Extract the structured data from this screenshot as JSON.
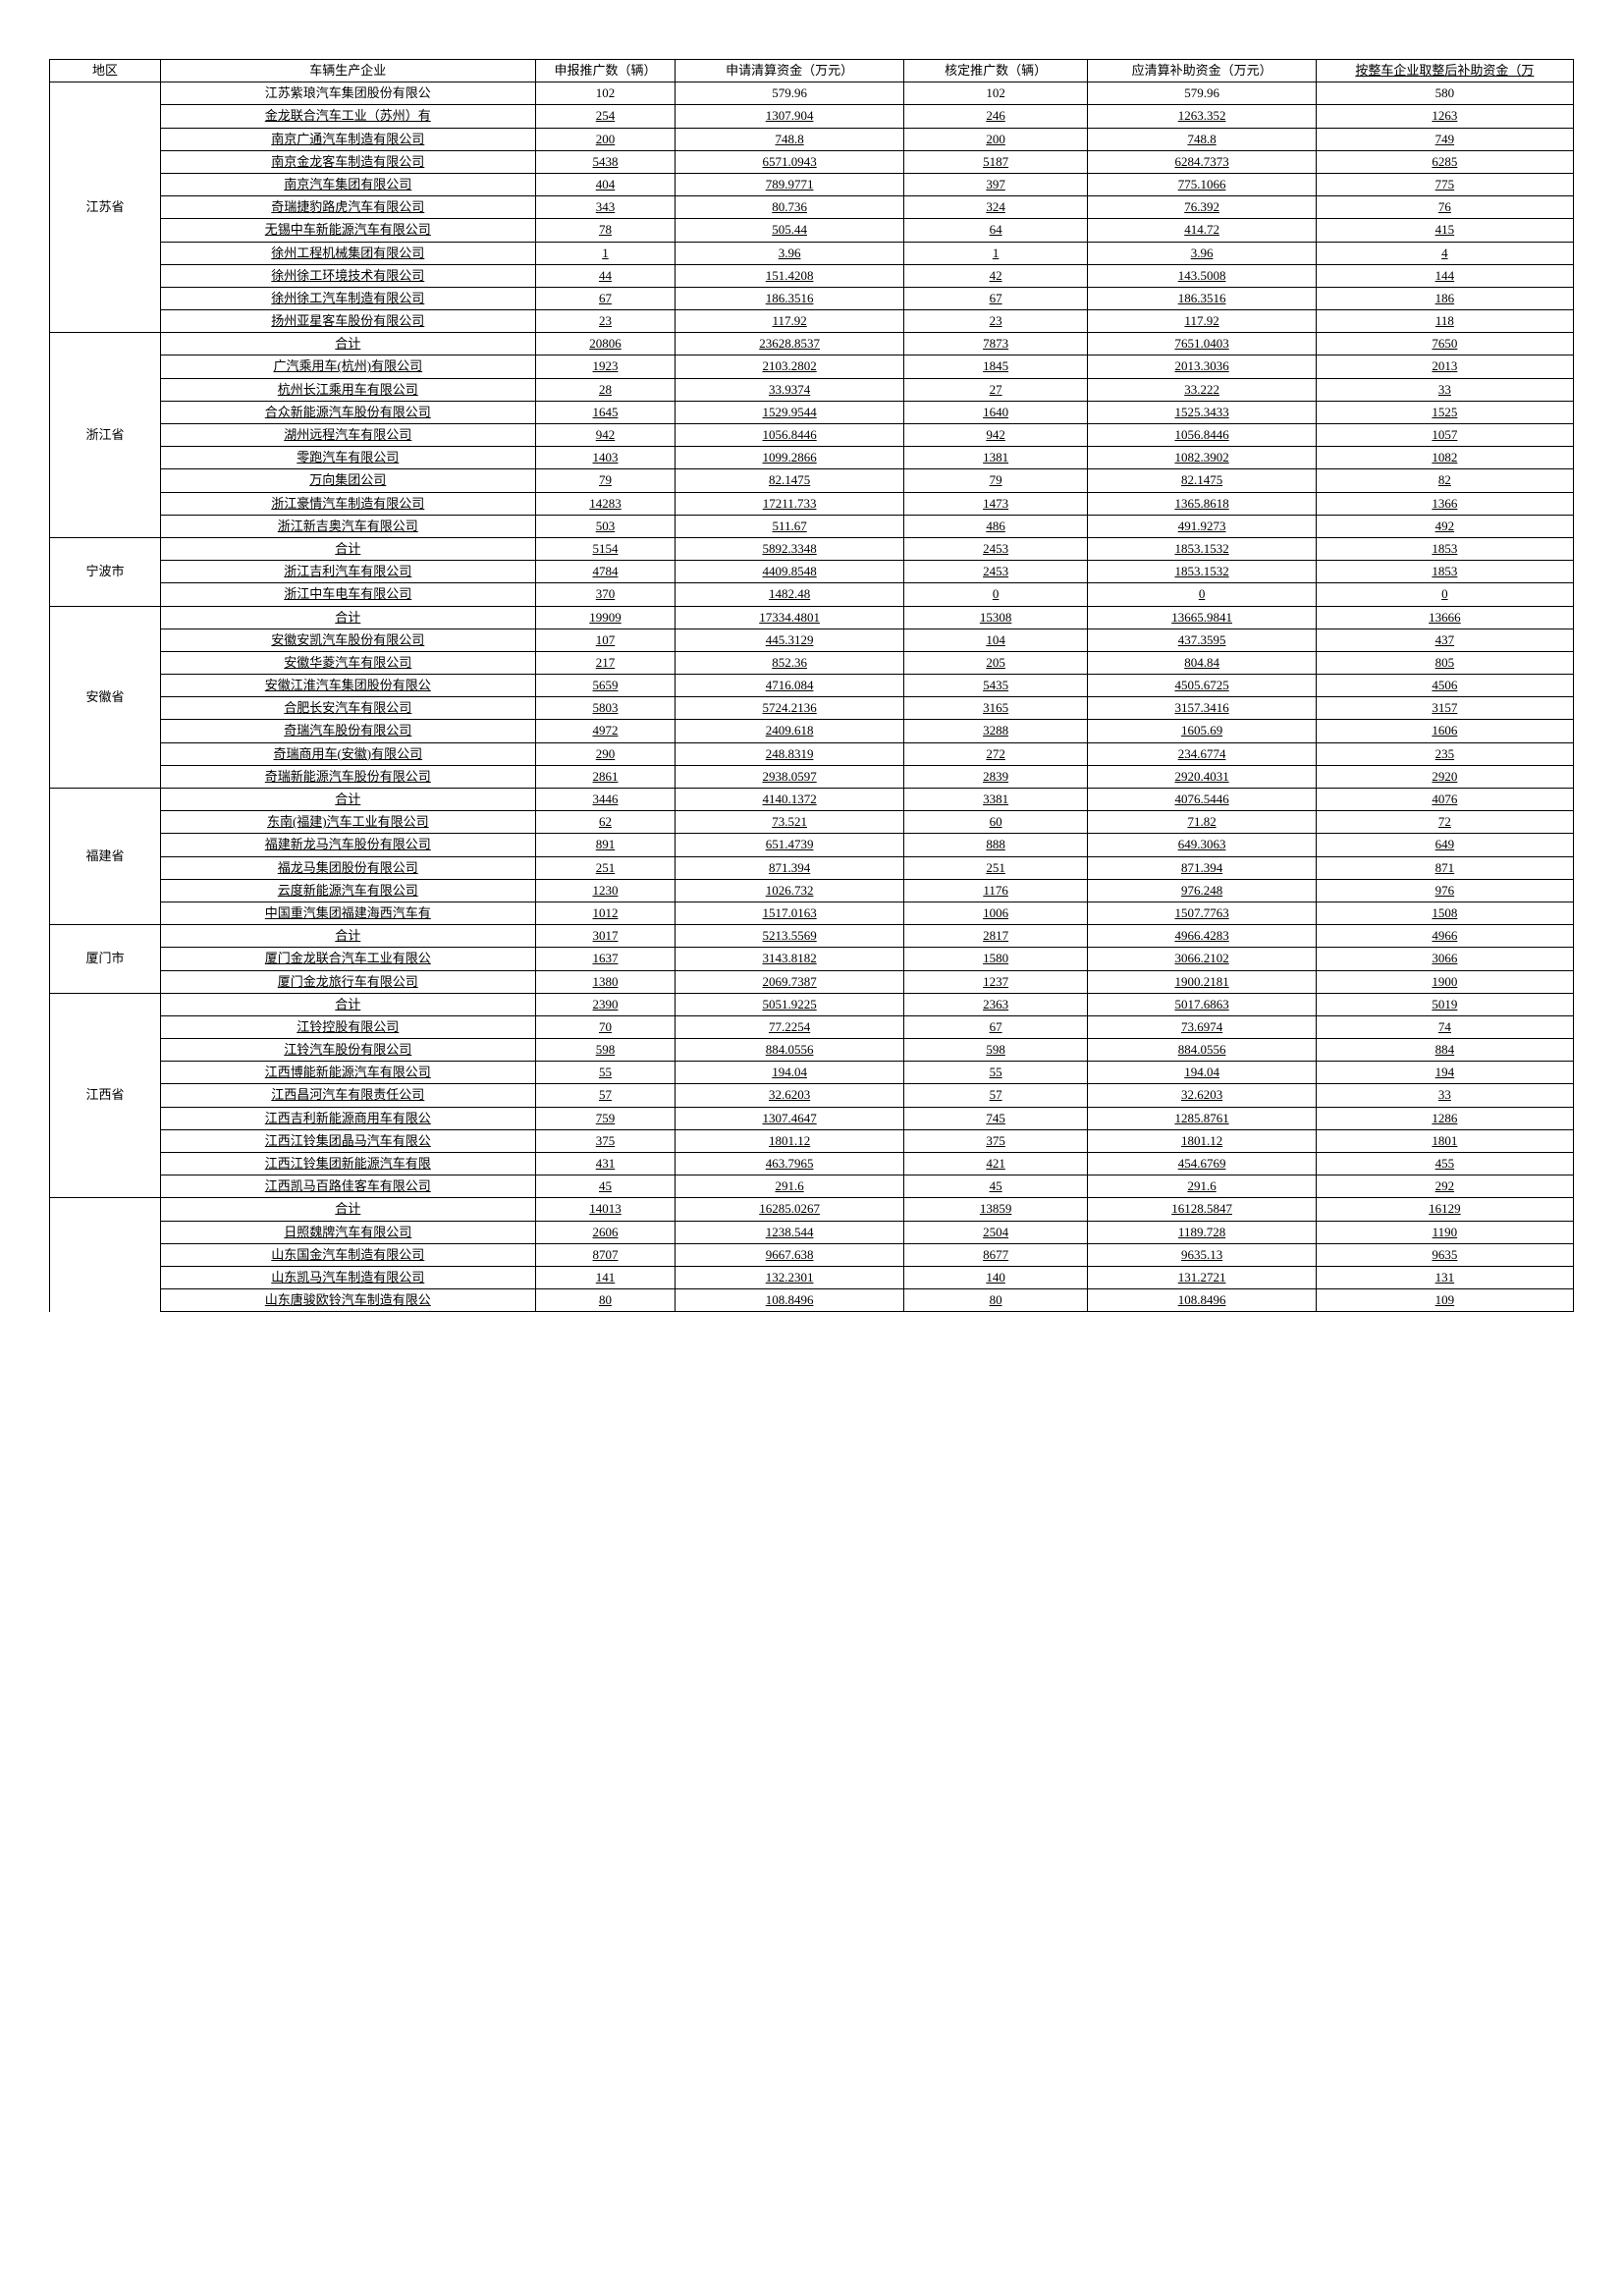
{
  "headers": {
    "region": "地区",
    "company": "车辆生产企业",
    "declared": "申报推广数（辆）",
    "applied": "申请清算资金（万元）",
    "approved": "核定推广数（辆）",
    "subsidy": "应清算补助资金（万元）",
    "rounded": "按整车企业取整后补助资金（万"
  },
  "regions": [
    {
      "name": "江苏省",
      "rows": [
        {
          "company": "江苏紫琅汽车集团股份有限公",
          "declared": "102",
          "applied": "579.96",
          "approved": "102",
          "subsidy": "579.96",
          "rounded": "580",
          "underline": false
        },
        {
          "company": "金龙联合汽车工业（苏州）有",
          "declared": "254",
          "applied": "1307.904",
          "approved": "246",
          "subsidy": "1263.352",
          "rounded": "1263",
          "underline": true
        },
        {
          "company": "南京广通汽车制造有限公司",
          "declared": "200",
          "applied": "748.8",
          "approved": "200",
          "subsidy": "748.8",
          "rounded": "749",
          "underline": true
        },
        {
          "company": "南京金龙客车制造有限公司",
          "declared": "5438",
          "applied": "6571.0943",
          "approved": "5187",
          "subsidy": "6284.7373",
          "rounded": "6285",
          "underline": true
        },
        {
          "company": "南京汽车集团有限公司",
          "declared": "404",
          "applied": "789.9771",
          "approved": "397",
          "subsidy": "775.1066",
          "rounded": "775",
          "underline": true
        },
        {
          "company": "奇瑞捷豹路虎汽车有限公司",
          "declared": "343",
          "applied": "80.736",
          "approved": "324",
          "subsidy": "76.392",
          "rounded": "76",
          "underline": true
        },
        {
          "company": "无锡中车新能源汽车有限公司",
          "declared": "78",
          "applied": "505.44",
          "approved": "64",
          "subsidy": "414.72",
          "rounded": "415",
          "underline": true
        },
        {
          "company": "徐州工程机械集团有限公司",
          "declared": "1",
          "applied": "3.96",
          "approved": "1",
          "subsidy": "3.96",
          "rounded": "4",
          "underline": true
        },
        {
          "company": "徐州徐工环境技术有限公司",
          "declared": "44",
          "applied": "151.4208",
          "approved": "42",
          "subsidy": "143.5008",
          "rounded": "144",
          "underline": true
        },
        {
          "company": "徐州徐工汽车制造有限公司",
          "declared": "67",
          "applied": "186.3516",
          "approved": "67",
          "subsidy": "186.3516",
          "rounded": "186",
          "underline": true
        },
        {
          "company": "扬州亚星客车股份有限公司",
          "declared": "23",
          "applied": "117.92",
          "approved": "23",
          "subsidy": "117.92",
          "rounded": "118",
          "underline": true
        }
      ]
    },
    {
      "name": "浙江省",
      "rows": [
        {
          "company": "合计",
          "declared": "20806",
          "applied": "23628.8537",
          "approved": "7873",
          "subsidy": "7651.0403",
          "rounded": "7650",
          "underline": true
        },
        {
          "company": "广汽乘用车(杭州)有限公司",
          "declared": "1923",
          "applied": "2103.2802",
          "approved": "1845",
          "subsidy": "2013.3036",
          "rounded": "2013",
          "underline": true
        },
        {
          "company": "杭州长江乘用车有限公司",
          "declared": "28",
          "applied": "33.9374",
          "approved": "27",
          "subsidy": "33.222",
          "rounded": "33",
          "underline": true
        },
        {
          "company": "合众新能源汽车股份有限公司",
          "declared": "1645",
          "applied": "1529.9544",
          "approved": "1640",
          "subsidy": "1525.3433",
          "rounded": "1525",
          "underline": true
        },
        {
          "company": "湖州远程汽车有限公司",
          "declared": "942",
          "applied": "1056.8446",
          "approved": "942",
          "subsidy": "1056.8446",
          "rounded": "1057",
          "underline": true
        },
        {
          "company": "零跑汽车有限公司",
          "declared": "1403",
          "applied": "1099.2866",
          "approved": "1381",
          "subsidy": "1082.3902",
          "rounded": "1082",
          "underline": true
        },
        {
          "company": "万向集团公司",
          "declared": "79",
          "applied": "82.1475",
          "approved": "79",
          "subsidy": "82.1475",
          "rounded": "82",
          "underline": true
        },
        {
          "company": "浙江豪情汽车制造有限公司",
          "declared": "14283",
          "applied": "17211.733",
          "approved": "1473",
          "subsidy": "1365.8618",
          "rounded": "1366",
          "underline": true
        },
        {
          "company": "浙江新吉奥汽车有限公司",
          "declared": "503",
          "applied": "511.67",
          "approved": "486",
          "subsidy": "491.9273",
          "rounded": "492",
          "underline": true
        }
      ]
    },
    {
      "name": "宁波市",
      "rows": [
        {
          "company": "合计",
          "declared": "5154",
          "applied": "5892.3348",
          "approved": "2453",
          "subsidy": "1853.1532",
          "rounded": "1853",
          "underline": true
        },
        {
          "company": "浙江吉利汽车有限公司",
          "declared": "4784",
          "applied": "4409.8548",
          "approved": "2453",
          "subsidy": "1853.1532",
          "rounded": "1853",
          "underline": true
        },
        {
          "company": "浙江中车电车有限公司",
          "declared": "370",
          "applied": "1482.48",
          "approved": "0",
          "subsidy": "0",
          "rounded": "0",
          "underline": true
        }
      ]
    },
    {
      "name": "安徽省",
      "rows": [
        {
          "company": "合计",
          "declared": "19909",
          "applied": "17334.4801",
          "approved": "15308",
          "subsidy": "13665.9841",
          "rounded": "13666",
          "underline": true
        },
        {
          "company": "安徽安凯汽车股份有限公司",
          "declared": "107",
          "applied": "445.3129",
          "approved": "104",
          "subsidy": "437.3595",
          "rounded": "437",
          "underline": true
        },
        {
          "company": "安徽华菱汽车有限公司",
          "declared": "217",
          "applied": "852.36",
          "approved": "205",
          "subsidy": "804.84",
          "rounded": "805",
          "underline": true
        },
        {
          "company": "安徽江淮汽车集团股份有限公",
          "declared": "5659",
          "applied": "4716.084",
          "approved": "5435",
          "subsidy": "4505.6725",
          "rounded": "4506",
          "underline": true
        },
        {
          "company": "合肥长安汽车有限公司",
          "declared": "5803",
          "applied": "5724.2136",
          "approved": "3165",
          "subsidy": "3157.3416",
          "rounded": "3157",
          "underline": true
        },
        {
          "company": "奇瑞汽车股份有限公司",
          "declared": "4972",
          "applied": "2409.618",
          "approved": "3288",
          "subsidy": "1605.69",
          "rounded": "1606",
          "underline": true
        },
        {
          "company": "奇瑞商用车(安徽)有限公司",
          "declared": "290",
          "applied": "248.8319",
          "approved": "272",
          "subsidy": "234.6774",
          "rounded": "235",
          "underline": true
        },
        {
          "company": "奇瑞新能源汽车股份有限公司",
          "declared": "2861",
          "applied": "2938.0597",
          "approved": "2839",
          "subsidy": "2920.4031",
          "rounded": "2920",
          "underline": true
        }
      ]
    },
    {
      "name": "福建省",
      "rows": [
        {
          "company": "合计",
          "declared": "3446",
          "applied": "4140.1372",
          "approved": "3381",
          "subsidy": "4076.5446",
          "rounded": "4076",
          "underline": true
        },
        {
          "company": "东南(福建)汽车工业有限公司",
          "declared": "62",
          "applied": "73.521",
          "approved": "60",
          "subsidy": "71.82",
          "rounded": "72",
          "underline": true
        },
        {
          "company": "福建新龙马汽车股份有限公司",
          "declared": "891",
          "applied": "651.4739",
          "approved": "888",
          "subsidy": "649.3063",
          "rounded": "649",
          "underline": true
        },
        {
          "company": "福龙马集团股份有限公司",
          "declared": "251",
          "applied": "871.394",
          "approved": "251",
          "subsidy": "871.394",
          "rounded": "871",
          "underline": true
        },
        {
          "company": "云度新能源汽车有限公司",
          "declared": "1230",
          "applied": "1026.732",
          "approved": "1176",
          "subsidy": "976.248",
          "rounded": "976",
          "underline": true
        },
        {
          "company": "中国重汽集团福建海西汽车有",
          "declared": "1012",
          "applied": "1517.0163",
          "approved": "1006",
          "subsidy": "1507.7763",
          "rounded": "1508",
          "underline": true
        }
      ]
    },
    {
      "name": "厦门市",
      "rows": [
        {
          "company": "合计",
          "declared": "3017",
          "applied": "5213.5569",
          "approved": "2817",
          "subsidy": "4966.4283",
          "rounded": "4966",
          "underline": true
        },
        {
          "company": "厦门金龙联合汽车工业有限公",
          "declared": "1637",
          "applied": "3143.8182",
          "approved": "1580",
          "subsidy": "3066.2102",
          "rounded": "3066",
          "underline": true
        },
        {
          "company": "厦门金龙旅行车有限公司",
          "declared": "1380",
          "applied": "2069.7387",
          "approved": "1237",
          "subsidy": "1900.2181",
          "rounded": "1900",
          "underline": true
        }
      ]
    },
    {
      "name": "江西省",
      "rows": [
        {
          "company": "合计",
          "declared": "2390",
          "applied": "5051.9225",
          "approved": "2363",
          "subsidy": "5017.6863",
          "rounded": "5019",
          "underline": true
        },
        {
          "company": "江铃控股有限公司",
          "declared": "70",
          "applied": "77.2254",
          "approved": "67",
          "subsidy": "73.6974",
          "rounded": "74",
          "underline": true
        },
        {
          "company": "江铃汽车股份有限公司",
          "declared": "598",
          "applied": "884.0556",
          "approved": "598",
          "subsidy": "884.0556",
          "rounded": "884",
          "underline": true
        },
        {
          "company": "江西博能新能源汽车有限公司",
          "declared": "55",
          "applied": "194.04",
          "approved": "55",
          "subsidy": "194.04",
          "rounded": "194",
          "underline": true
        },
        {
          "company": "江西昌河汽车有限责任公司",
          "declared": "57",
          "applied": "32.6203",
          "approved": "57",
          "subsidy": "32.6203",
          "rounded": "33",
          "underline": true
        },
        {
          "company": "江西吉利新能源商用车有限公",
          "declared": "759",
          "applied": "1307.4647",
          "approved": "745",
          "subsidy": "1285.8761",
          "rounded": "1286",
          "underline": true
        },
        {
          "company": "江西江铃集团晶马汽车有限公",
          "declared": "375",
          "applied": "1801.12",
          "approved": "375",
          "subsidy": "1801.12",
          "rounded": "1801",
          "underline": true
        },
        {
          "company": "江西江铃集团新能源汽车有限",
          "declared": "431",
          "applied": "463.7965",
          "approved": "421",
          "subsidy": "454.6769",
          "rounded": "455",
          "underline": true
        },
        {
          "company": "江西凯马百路佳客车有限公司",
          "declared": "45",
          "applied": "291.6",
          "approved": "45",
          "subsidy": "291.6",
          "rounded": "292",
          "underline": true
        }
      ]
    },
    {
      "name": "",
      "rows": [
        {
          "company": "合计",
          "declared": "14013",
          "applied": "16285.0267",
          "approved": "13859",
          "subsidy": "16128.5847",
          "rounded": "16129",
          "underline": true
        },
        {
          "company": "日照魏牌汽车有限公司",
          "declared": "2606",
          "applied": "1238.544",
          "approved": "2504",
          "subsidy": "1189.728",
          "rounded": "1190",
          "underline": true
        },
        {
          "company": "山东国金汽车制造有限公司",
          "declared": "8707",
          "applied": "9667.638",
          "approved": "8677",
          "subsidy": "9635.13",
          "rounded": "9635",
          "underline": true
        },
        {
          "company": "山东凯马汽车制造有限公司",
          "declared": "141",
          "applied": "132.2301",
          "approved": "140",
          "subsidy": "131.2721",
          "rounded": "131",
          "underline": true
        },
        {
          "company": "山东唐骏欧铃汽车制造有限公",
          "declared": "80",
          "applied": "108.8496",
          "approved": "80",
          "subsidy": "108.8496",
          "rounded": "109",
          "underline": true
        }
      ]
    }
  ]
}
